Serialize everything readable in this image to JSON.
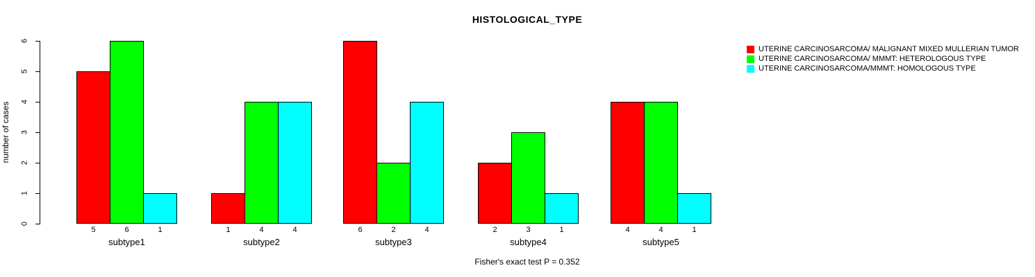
{
  "title": "HISTOLOGICAL_TYPE",
  "footer_annotation": "Fisher's exact test P = 0.352",
  "legend": {
    "position": "right",
    "items": [
      {
        "color": "#FF0000",
        "label": "UTERINE CARCINOSARCOMA/ MALIGNANT MIXED MULLERIAN TUMOR"
      },
      {
        "color": "#00FF00",
        "label": "UTERINE CARCINOSARCOMA/ MMMT: HETEROLOGOUS TYPE"
      },
      {
        "color": "#00FFFF",
        "label": "UTERINE CARCINOSARCOMA/MMMT: HOMOLOGOUS TYPE"
      }
    ]
  },
  "chart_data": {
    "type": "bar",
    "title": "HISTOLOGICAL_TYPE",
    "xlabel": "",
    "ylabel": "number of cases",
    "ylim": [
      0,
      6
    ],
    "yticks": [
      0,
      1,
      2,
      3,
      4,
      5,
      6
    ],
    "grid": false,
    "legend_position": "right",
    "annotation": "Fisher's exact test P = 0.352",
    "categories": [
      "subtype1",
      "subtype2",
      "subtype3",
      "subtype4",
      "subtype5"
    ],
    "series": [
      {
        "name": "UTERINE CARCINOSARCOMA/ MALIGNANT MIXED MULLERIAN TUMOR",
        "color": "#FF0000",
        "values": [
          5,
          1,
          6,
          2,
          4
        ]
      },
      {
        "name": "UTERINE CARCINOSARCOMA/ MMMT: HETEROLOGOUS TYPE",
        "color": "#00FF00",
        "values": [
          6,
          4,
          2,
          3,
          4
        ]
      },
      {
        "name": "UTERINE CARCINOSARCOMA/MMMT: HOMOLOGOUS TYPE",
        "color": "#00FFFF",
        "values": [
          1,
          4,
          4,
          1,
          1
        ]
      }
    ],
    "bar_value_labels_shown": true
  }
}
